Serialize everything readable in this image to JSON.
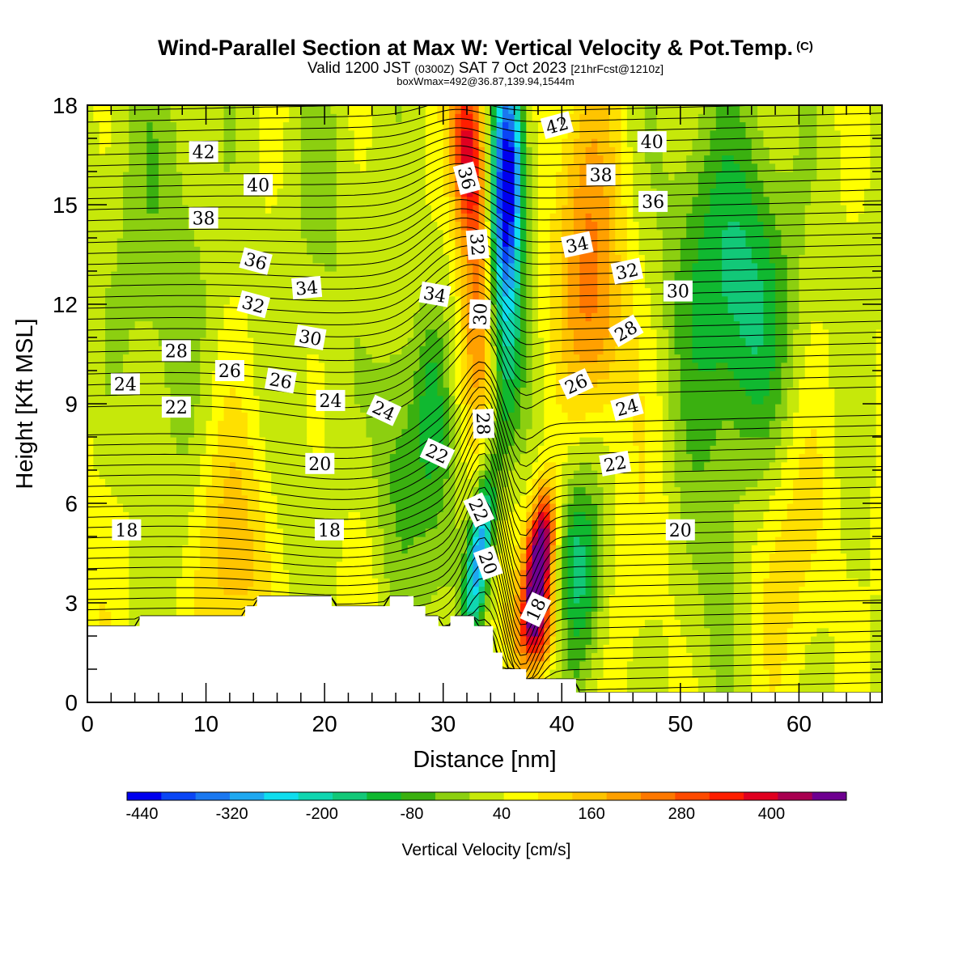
{
  "header": {
    "title": "Wind-Parallel Section at Max W: Vertical Velocity & Pot.Temp.",
    "copyright": "(C)",
    "subtitle_a": "Valid 1200 JST",
    "subtitle_b": "(0300Z)",
    "subtitle_c": "SAT 7 Oct 2023",
    "subtitle_d": "[21hrFcst@1210z]",
    "boxline": "boxWmax=492@36.87,139.94,1544m"
  },
  "colors": {
    "palette": [
      "#0000ee",
      "#0a46f5",
      "#1a78f0",
      "#1ea8f0",
      "#10ddee",
      "#10d6b0",
      "#12c878",
      "#10b830",
      "#3ab010",
      "#8ccf10",
      "#c6e80a",
      "#ffff00",
      "#ffe000",
      "#ffc400",
      "#ffa000",
      "#ff7800",
      "#ff4a00",
      "#ff1e00",
      "#e00020",
      "#a80050",
      "#6e0090"
    ],
    "terrain": "#ffffff",
    "contour": "#000000"
  },
  "chart_data": {
    "type": "contour",
    "xlabel": "Distance [nm]",
    "ylabel": "Height [Kft MSL]",
    "xlim": [
      0,
      67
    ],
    "ylim": [
      0,
      18
    ],
    "xticks": [
      0,
      10,
      20,
      30,
      40,
      50,
      60
    ],
    "yticks": [
      0,
      3,
      6,
      9,
      12,
      15,
      18
    ],
    "colorbar": {
      "title": "Vertical Velocity [cm/s]",
      "labels": [
        "-440",
        "-320",
        "-200",
        "-80",
        "40",
        "160",
        "280",
        "400"
      ],
      "label_values": [
        -440,
        -320,
        -200,
        -80,
        40,
        160,
        280,
        400
      ],
      "min": -460,
      "max": 500,
      "step": 40
    },
    "terrain_profile": [
      [
        0,
        2.3
      ],
      [
        4.4,
        2.3
      ],
      [
        4.4,
        2.6
      ],
      [
        13.3,
        2.6
      ],
      [
        13.3,
        2.9
      ],
      [
        14.3,
        2.9
      ],
      [
        14.3,
        3.2
      ],
      [
        20.6,
        3.2
      ],
      [
        20.6,
        2.9
      ],
      [
        25.5,
        2.9
      ],
      [
        25.5,
        3.2
      ],
      [
        27.5,
        3.2
      ],
      [
        27.5,
        2.9
      ],
      [
        28.5,
        2.9
      ],
      [
        28.5,
        2.6
      ],
      [
        29.6,
        2.6
      ],
      [
        29.6,
        2.3
      ],
      [
        30.6,
        2.3
      ],
      [
        30.6,
        2.6
      ],
      [
        32.6,
        2.6
      ],
      [
        32.6,
        2.3
      ],
      [
        34.2,
        2.3
      ],
      [
        34.2,
        1.5
      ],
      [
        35.0,
        1.5
      ],
      [
        35.0,
        1.0
      ],
      [
        37.0,
        1.0
      ],
      [
        37.0,
        0.7
      ],
      [
        41.2,
        0.7
      ],
      [
        41.2,
        0.3
      ],
      [
        67,
        0.3
      ]
    ],
    "theta_contours": {
      "interval": 2,
      "units": "C",
      "labels": [
        {
          "text": "42",
          "x": 9.8,
          "y": 16.6,
          "angle": 0
        },
        {
          "text": "40",
          "x": 14.4,
          "y": 15.6,
          "angle": 0
        },
        {
          "text": "38",
          "x": 9.8,
          "y": 14.6,
          "angle": 0
        },
        {
          "text": "36",
          "x": 14.2,
          "y": 13.3,
          "angle": 15
        },
        {
          "text": "34",
          "x": 18.5,
          "y": 12.5,
          "angle": -5
        },
        {
          "text": "32",
          "x": 14.0,
          "y": 12.0,
          "angle": 15
        },
        {
          "text": "30",
          "x": 18.8,
          "y": 11.0,
          "angle": 10
        },
        {
          "text": "28",
          "x": 7.5,
          "y": 10.6,
          "angle": 0
        },
        {
          "text": "26",
          "x": 12.0,
          "y": 10.0,
          "angle": 0
        },
        {
          "text": "26",
          "x": 16.3,
          "y": 9.7,
          "angle": 10
        },
        {
          "text": "24",
          "x": 3.2,
          "y": 9.6,
          "angle": 0
        },
        {
          "text": "22",
          "x": 7.5,
          "y": 8.9,
          "angle": 0
        },
        {
          "text": "24",
          "x": 20.5,
          "y": 9.1,
          "angle": 0
        },
        {
          "text": "24",
          "x": 25.0,
          "y": 8.8,
          "angle": 25
        },
        {
          "text": "22",
          "x": 29.5,
          "y": 7.5,
          "angle": 25
        },
        {
          "text": "20",
          "x": 19.6,
          "y": 7.2,
          "angle": 0
        },
        {
          "text": "18",
          "x": 3.3,
          "y": 5.2,
          "angle": 0
        },
        {
          "text": "18",
          "x": 20.4,
          "y": 5.2,
          "angle": 0
        },
        {
          "text": "34",
          "x": 29.3,
          "y": 12.3,
          "angle": 10
        },
        {
          "text": "36",
          "x": 32.0,
          "y": 15.8,
          "angle": 75
        },
        {
          "text": "32",
          "x": 32.9,
          "y": 13.8,
          "angle": 85
        },
        {
          "text": "30",
          "x": 33.1,
          "y": 11.7,
          "angle": -88
        },
        {
          "text": "28",
          "x": 33.4,
          "y": 8.4,
          "angle": 88
        },
        {
          "text": "22",
          "x": 33.0,
          "y": 5.8,
          "angle": 65
        },
        {
          "text": "20",
          "x": 33.8,
          "y": 4.2,
          "angle": 70
        },
        {
          "text": "18",
          "x": 37.8,
          "y": 2.8,
          "angle": -65
        },
        {
          "text": "42",
          "x": 39.6,
          "y": 17.4,
          "angle": -15
        },
        {
          "text": "40",
          "x": 47.6,
          "y": 16.9,
          "angle": 0
        },
        {
          "text": "38",
          "x": 43.3,
          "y": 15.9,
          "angle": 0
        },
        {
          "text": "36",
          "x": 47.7,
          "y": 15.1,
          "angle": 0
        },
        {
          "text": "34",
          "x": 41.3,
          "y": 13.8,
          "angle": -12
        },
        {
          "text": "32",
          "x": 45.5,
          "y": 13.0,
          "angle": -12
        },
        {
          "text": "30",
          "x": 49.8,
          "y": 12.4,
          "angle": 0
        },
        {
          "text": "28",
          "x": 45.4,
          "y": 11.2,
          "angle": -30
        },
        {
          "text": "26",
          "x": 41.2,
          "y": 9.6,
          "angle": -25
        },
        {
          "text": "24",
          "x": 45.5,
          "y": 8.9,
          "angle": -15
        },
        {
          "text": "22",
          "x": 44.5,
          "y": 7.2,
          "angle": -10
        },
        {
          "text": "20",
          "x": 50.0,
          "y": 5.2,
          "angle": 0
        }
      ]
    }
  }
}
